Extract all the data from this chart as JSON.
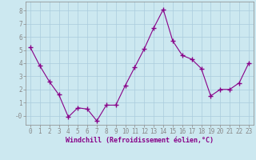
{
  "x": [
    0,
    1,
    2,
    3,
    4,
    5,
    6,
    7,
    8,
    9,
    10,
    11,
    12,
    13,
    14,
    15,
    16,
    17,
    18,
    19,
    20,
    21,
    22,
    23
  ],
  "y": [
    5.2,
    3.8,
    2.6,
    1.6,
    -0.1,
    0.6,
    0.5,
    -0.4,
    0.8,
    0.8,
    2.3,
    3.7,
    5.1,
    6.7,
    8.1,
    5.7,
    4.6,
    4.3,
    3.6,
    1.5,
    2.0,
    2.0,
    2.5,
    4.0
  ],
  "line_color": "#880088",
  "marker": "+",
  "marker_size": 4,
  "bg_color": "#cce8f0",
  "grid_color": "#aaccdd",
  "xlabel": "Windchill (Refroidissement éolien,°C)",
  "xlim": [
    -0.5,
    23.5
  ],
  "ylim": [
    -0.7,
    8.7
  ],
  "yticks": [
    0,
    1,
    2,
    3,
    4,
    5,
    6,
    7,
    8
  ],
  "xticks": [
    0,
    1,
    2,
    3,
    4,
    5,
    6,
    7,
    8,
    9,
    10,
    11,
    12,
    13,
    14,
    15,
    16,
    17,
    18,
    19,
    20,
    21,
    22,
    23
  ],
  "ytick_labels": [
    "-0",
    "1",
    "2",
    "3",
    "4",
    "5",
    "6",
    "7",
    "8"
  ],
  "xtick_labels": [
    "0",
    "1",
    "2",
    "3",
    "4",
    "5",
    "6",
    "7",
    "8",
    "9",
    "10",
    "11",
    "12",
    "13",
    "14",
    "15",
    "16",
    "17",
    "18",
    "19",
    "20",
    "21",
    "22",
    "23"
  ],
  "font_color": "#880088",
  "xlabel_fontsize": 6.0,
  "tick_fontsize": 5.5
}
